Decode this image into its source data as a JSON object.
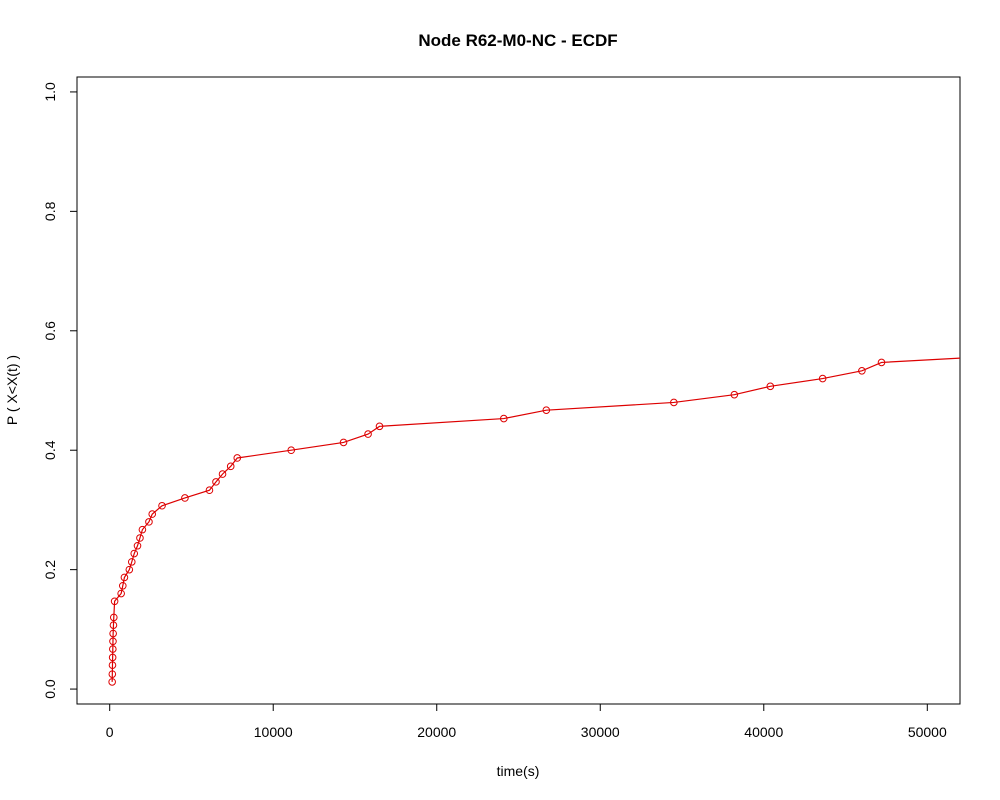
{
  "chart_data": {
    "type": "line",
    "title": "Node R62-M0-NC - ECDF",
    "xlabel": "time(s)",
    "ylabel": "P ( X<X(t) )",
    "xlim": [
      -2000,
      52000
    ],
    "ylim": [
      -0.025,
      1.025
    ],
    "xticks": [
      0,
      10000,
      20000,
      30000,
      40000,
      50000
    ],
    "xtick_labels": [
      "0",
      "10000",
      "20000",
      "30000",
      "40000",
      "50000"
    ],
    "yticks": [
      0.0,
      0.2,
      0.4,
      0.6,
      0.8,
      1.0
    ],
    "ytick_labels": [
      "0.0",
      "0.2",
      "0.4",
      "0.6",
      "0.8",
      "1.0"
    ],
    "grid": false,
    "colors": {
      "series": "#dd0000",
      "axes": "#000000",
      "background": "#ffffff"
    },
    "series": [
      {
        "marker": "open-circle",
        "x": [
          150,
          160,
          170,
          180,
          190,
          200,
          210,
          230,
          250,
          300,
          700,
          800,
          900,
          1200,
          1350,
          1500,
          1700,
          1850,
          2000,
          2400,
          2600,
          3200,
          4600,
          6100,
          6500,
          6900,
          7400,
          7800,
          11100,
          14300,
          15800,
          16500,
          24100,
          26700,
          34500,
          38200,
          40400,
          43600,
          46000,
          47200,
          52500
        ],
        "y": [
          0.012,
          0.025,
          0.04,
          0.053,
          0.067,
          0.08,
          0.093,
          0.107,
          0.12,
          0.147,
          0.16,
          0.173,
          0.187,
          0.2,
          0.213,
          0.227,
          0.24,
          0.253,
          0.267,
          0.28,
          0.293,
          0.307,
          0.32,
          0.333,
          0.347,
          0.36,
          0.373,
          0.387,
          0.4,
          0.413,
          0.427,
          0.44,
          0.453,
          0.467,
          0.48,
          0.493,
          0.507,
          0.52,
          0.533,
          0.547,
          0.555
        ]
      }
    ]
  }
}
